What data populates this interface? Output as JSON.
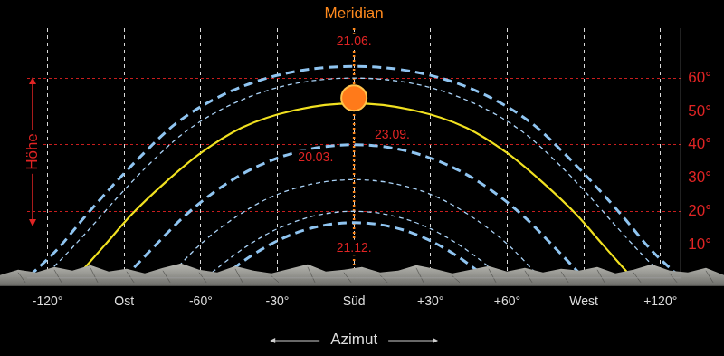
{
  "chart_data": {
    "type": "line",
    "x_label": "Azimut",
    "y_label": "Höhe",
    "xlim": [
      -128,
      128
    ],
    "ylim": [
      0,
      75
    ],
    "xticks": [
      {
        "value": -120,
        "label": "-120°"
      },
      {
        "value": -90,
        "label": "Ost"
      },
      {
        "value": -60,
        "label": "-60°"
      },
      {
        "value": -30,
        "label": "-30°"
      },
      {
        "value": 0,
        "label": "Süd"
      },
      {
        "value": 30,
        "label": "+30°"
      },
      {
        "value": 60,
        "label": "+60°"
      },
      {
        "value": 90,
        "label": "West"
      },
      {
        "value": 120,
        "label": "+120°"
      }
    ],
    "yticks": [
      {
        "value": 10,
        "label": "10°"
      },
      {
        "value": 20,
        "label": "20°"
      },
      {
        "value": 30,
        "label": "30°"
      },
      {
        "value": 40,
        "label": "40°"
      },
      {
        "value": 50,
        "label": "50°"
      },
      {
        "value": 60,
        "label": "60°"
      }
    ],
    "grid": true,
    "meridian": {
      "text": "Meridian",
      "x": 0,
      "color": "#ff8a1e",
      "line_style": "dotted"
    },
    "annotations": [
      {
        "text": "21.06.",
        "x": 0,
        "y": 71,
        "color": "#e02424"
      },
      {
        "text": "23.09.",
        "x": 15,
        "y": 43,
        "color": "#e02424"
      },
      {
        "text": "20.03.",
        "x": -15,
        "y": 36,
        "color": "#e02424"
      },
      {
        "text": "21.12.",
        "x": 0,
        "y": 9,
        "color": "#e02424"
      }
    ],
    "series": [
      {
        "color": "#8fc4f0",
        "line_style": "dashed",
        "marker": "none",
        "x": [
          -127,
          -116,
          -106,
          -95,
          -83,
          -70,
          -52,
          -29,
          0,
          29,
          52,
          70,
          83,
          95,
          106,
          116,
          127
        ],
        "values": [
          0.6,
          8.7,
          17.8,
          27.3,
          36.9,
          46.2,
          54.7,
          61,
          63.5,
          61,
          54.7,
          46.2,
          36.9,
          27.3,
          17.8,
          8.7,
          0.6
        ]
      },
      {
        "color": "#a9d1f5",
        "line_style": "dotted",
        "marker": "none",
        "x": [
          -122,
          -114,
          -103,
          -92,
          -80,
          -66.5,
          -49,
          -27,
          0,
          27,
          49,
          66.5,
          80,
          92,
          103,
          114,
          122
        ],
        "values": [
          0,
          6.1,
          15.2,
          24.7,
          34.3,
          43.6,
          51.7,
          57.7,
          60,
          57.7,
          51.7,
          43.6,
          34.3,
          24.7,
          15.2,
          6.1,
          0
        ]
      },
      {
        "color": "#f0e020",
        "line_style": "solid",
        "marker": "none",
        "x": [
          -109,
          -98,
          -87,
          -74,
          -60,
          -44,
          -23,
          0,
          23,
          44,
          60,
          74,
          87,
          98,
          109
        ],
        "values": [
          0,
          9.5,
          19.1,
          28.6,
          37.5,
          45.1,
          50.4,
          52.4,
          50.4,
          45.1,
          37.5,
          28.6,
          19.1,
          9.5,
          0
        ]
      },
      {
        "color": "#8fc4f0",
        "line_style": "dashed",
        "marker": "none",
        "x": [
          -90,
          -78,
          -66,
          -52.5,
          -37,
          -19,
          0,
          19,
          37,
          52.5,
          66,
          78,
          90
        ],
        "values": [
          0,
          9.6,
          18.8,
          27,
          33.8,
          38.4,
          40,
          38.4,
          33.8,
          27,
          18.8,
          9.6,
          0
        ]
      },
      {
        "color": "#a9d1f5",
        "line_style": "dotted",
        "marker": "none",
        "x": [
          -73,
          -60,
          -47,
          -33,
          -17,
          0,
          17,
          33,
          47,
          60,
          73
        ],
        "values": [
          0,
          10.2,
          17.9,
          24.1,
          28.1,
          29.5,
          28.1,
          24.1,
          17.9,
          10.2,
          0
        ]
      },
      {
        "color": "#a9d1f5",
        "line_style": "dotted",
        "marker": "none",
        "x": [
          -58,
          -54.5,
          -42,
          -29,
          -15,
          0,
          15,
          29,
          42,
          54.5,
          58
        ],
        "values": [
          0,
          2.3,
          9.5,
          15.1,
          18.7,
          20,
          18.7,
          15.1,
          9.5,
          2.3,
          0
        ]
      },
      {
        "color": "#8fc4f0",
        "line_style": "dashed",
        "marker": "none",
        "x": [
          -52,
          -40.7,
          -27.9,
          -14.3,
          0,
          14.3,
          27.9,
          40.7,
          52
        ],
        "values": [
          0,
          6.4,
          11.9,
          15.4,
          16.6,
          15.4,
          11.9,
          6.4,
          0
        ]
      },
      {
        "type": "scatter",
        "color": "#ff7a1a",
        "marker": "circle",
        "x": [
          0
        ],
        "values": [
          54
        ]
      }
    ]
  }
}
